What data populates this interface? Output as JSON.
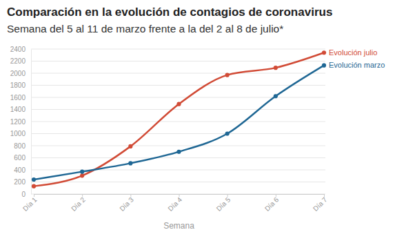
{
  "chart_data": {
    "type": "line",
    "title": "Comparación en la evolución de contagios de coronavirus",
    "subtitle": "Semana del 5 al 11 de marzo frente a la del 2 al 8 de julio*",
    "x_label": "Semana",
    "categories": [
      "Día 1",
      "Día 2",
      "Día 3",
      "Día 4",
      "Día 5",
      "Día 6",
      "Día 7"
    ],
    "series": [
      {
        "name": "Evolución julio",
        "color": "#d14b36",
        "values": [
          130,
          305,
          790,
          1490,
          1970,
          2090,
          2340
        ]
      },
      {
        "name": "Evolución marzo",
        "color": "#1f6794",
        "values": [
          240,
          370,
          510,
          700,
          1000,
          1620,
          2130
        ]
      }
    ],
    "ylim": [
      0,
      2400
    ],
    "yticks": [
      0,
      200,
      400,
      600,
      800,
      1000,
      1200,
      1400,
      1600,
      1800,
      2000,
      2200,
      2400
    ],
    "grid": true,
    "marker": "circle"
  }
}
